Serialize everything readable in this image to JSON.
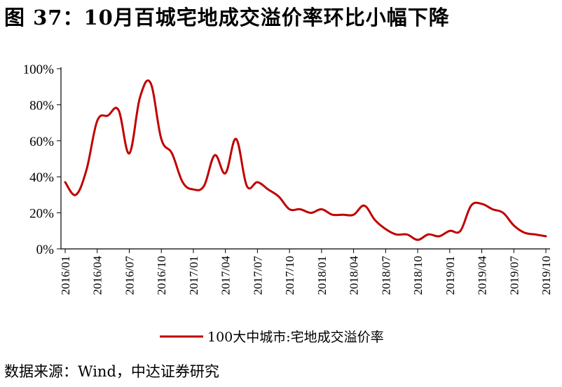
{
  "figure": {
    "title": "图 37：10月百城宅地成交溢价率环比小幅下降",
    "source": "数据来源：Wind，中达证券研究"
  },
  "colors": {
    "series": "#c00000",
    "axis": "#000000"
  },
  "chart_data": {
    "type": "line",
    "title": "",
    "xlabel": "",
    "ylabel": "",
    "ylim": [
      0,
      100
    ],
    "y_ticks": [
      "0%",
      "20%",
      "40%",
      "60%",
      "80%",
      "100%"
    ],
    "y_tick_values": [
      0,
      20,
      40,
      60,
      80,
      100
    ],
    "x_tick_labels": [
      "2016/01",
      "2016/04",
      "2016/07",
      "2016/10",
      "2017/01",
      "2017/04",
      "2017/07",
      "2017/10",
      "2018/01",
      "2018/04",
      "2018/07",
      "2018/10",
      "2019/01",
      "2019/04",
      "2019/07",
      "2019/10"
    ],
    "grid": false,
    "legend_position": "bottom",
    "series": [
      {
        "name": "100大中城市:宅地成交溢价率",
        "color": "#c00000",
        "x": [
          "2016/01",
          "2016/02",
          "2016/03",
          "2016/04",
          "2016/05",
          "2016/06",
          "2016/07",
          "2016/08",
          "2016/09",
          "2016/10",
          "2016/11",
          "2016/12",
          "2017/01",
          "2017/02",
          "2017/03",
          "2017/04",
          "2017/05",
          "2017/06",
          "2017/07",
          "2017/08",
          "2017/09",
          "2017/10",
          "2017/11",
          "2017/12",
          "2018/01",
          "2018/02",
          "2018/03",
          "2018/04",
          "2018/05",
          "2018/06",
          "2018/07",
          "2018/08",
          "2018/09",
          "2018/10",
          "2018/11",
          "2018/12",
          "2019/01",
          "2019/02",
          "2019/03",
          "2019/04",
          "2019/05",
          "2019/06",
          "2019/07",
          "2019/08",
          "2019/09",
          "2019/10"
        ],
        "values": [
          37,
          30,
          44,
          71,
          74,
          77,
          53,
          84,
          92,
          61,
          53,
          37,
          33,
          35,
          52,
          42,
          61,
          35,
          37,
          33,
          29,
          22,
          22,
          20,
          22,
          19,
          19,
          19,
          24,
          16,
          11,
          8,
          8,
          5,
          8,
          7,
          10,
          10,
          24,
          25,
          22,
          20,
          13,
          9,
          8,
          7
        ]
      }
    ]
  }
}
